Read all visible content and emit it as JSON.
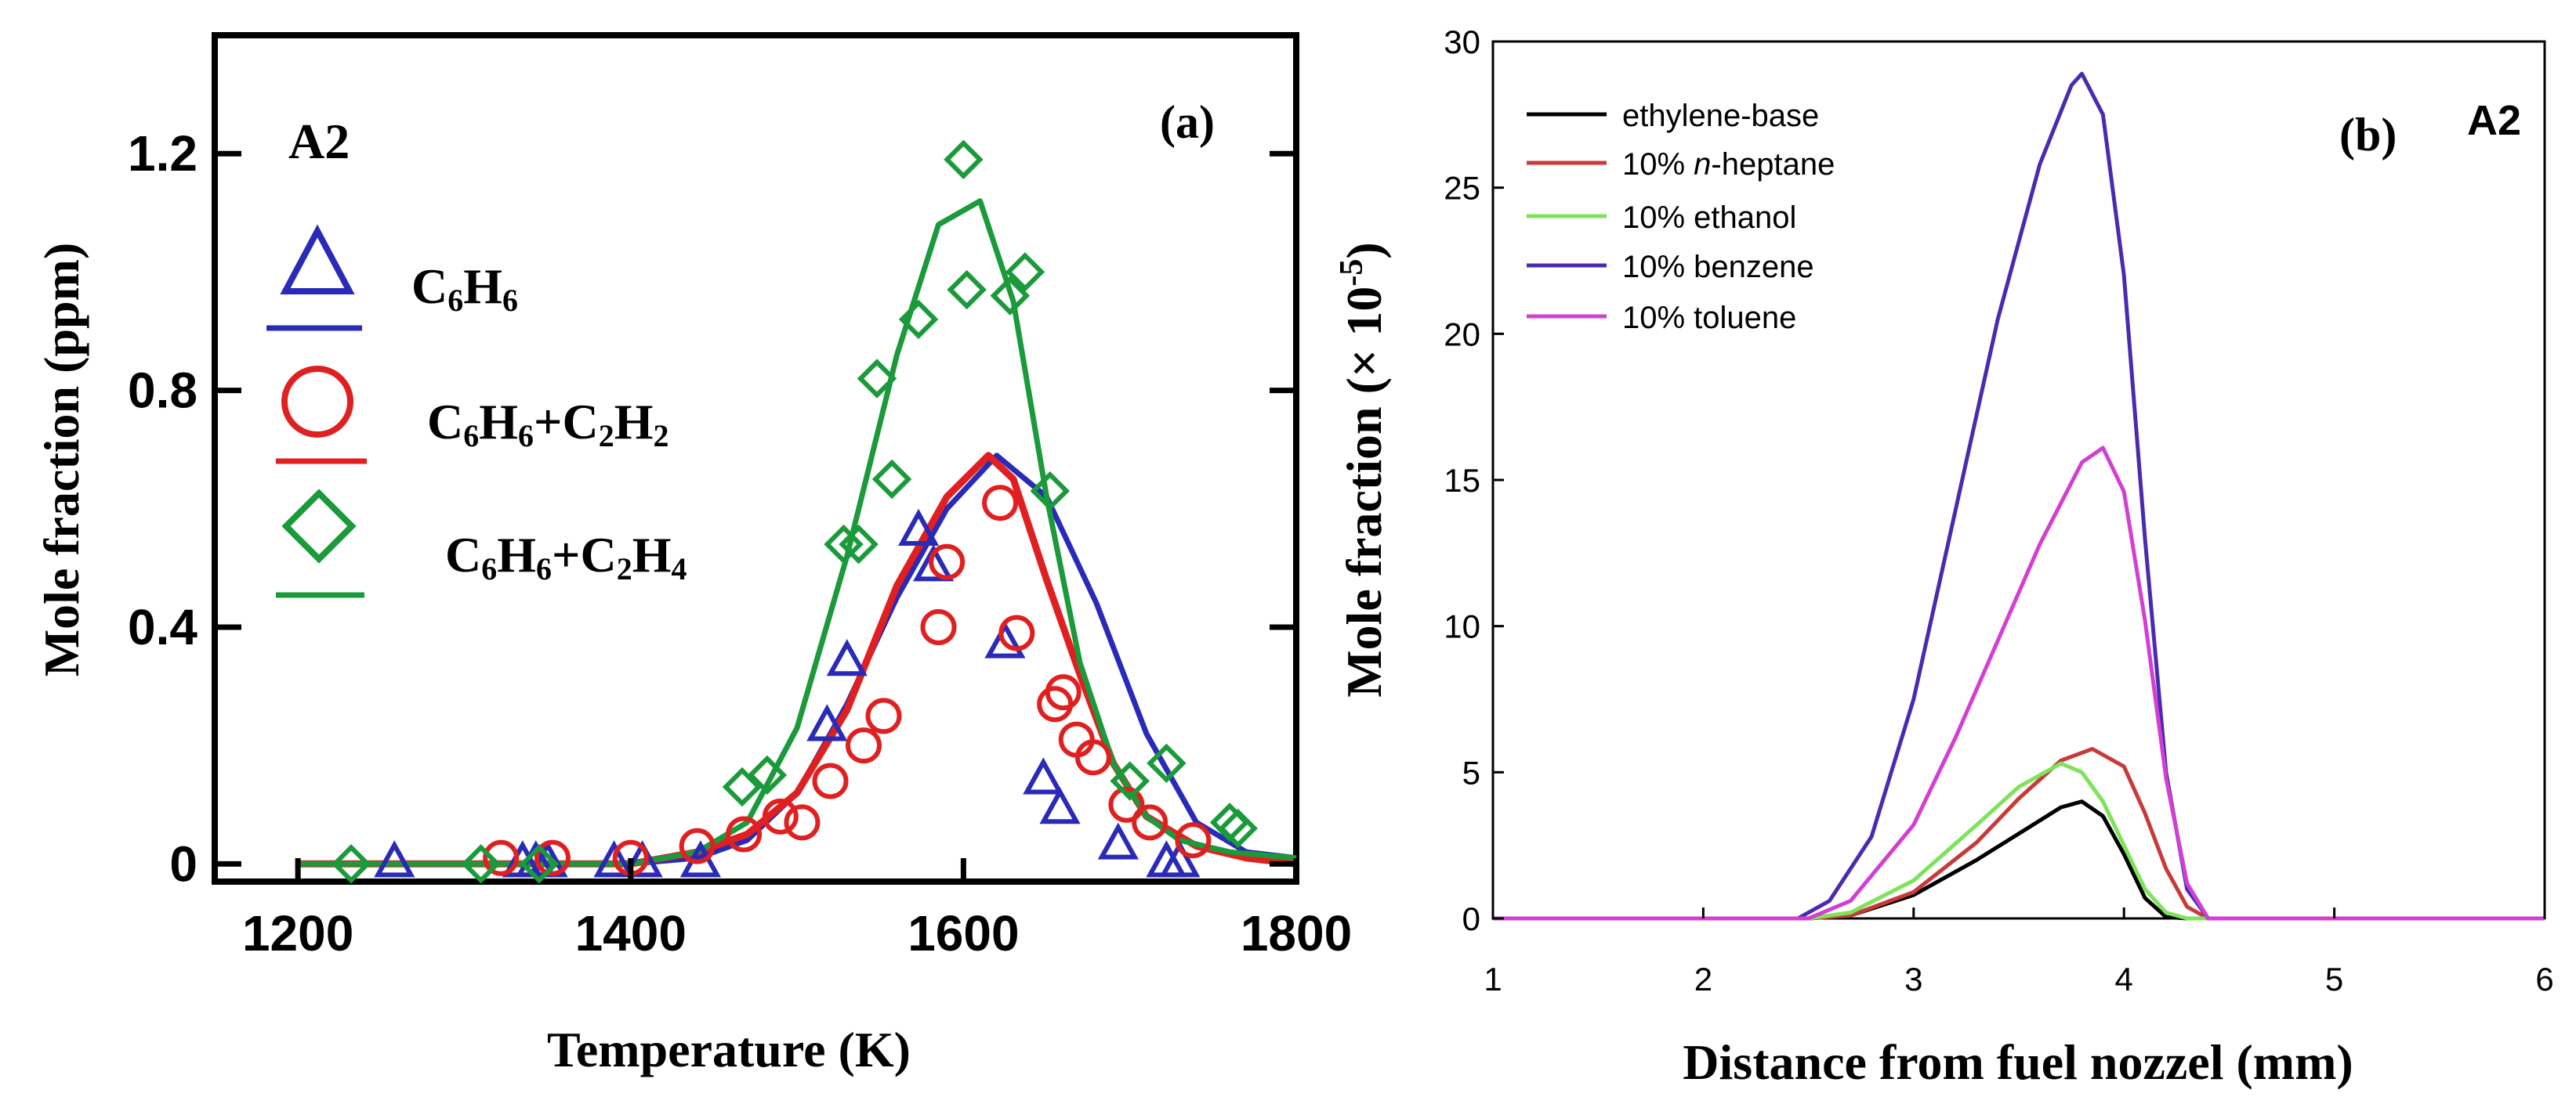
{
  "chart_data": [
    {
      "panel_label": "(a)",
      "type": "scatter",
      "tag": "A2",
      "xlabel": "Temperature (K)",
      "ylabel": "Mole fraction (ppm)",
      "xlim": [
        1150,
        1800
      ],
      "ylim": [
        -0.03,
        1.4
      ],
      "xticks": [
        1200,
        1400,
        1600,
        1800
      ],
      "xtick_labels": [
        "1200",
        "1400",
        "1600",
        "1800"
      ],
      "yticks": [
        0,
        0.4,
        0.8,
        1.2
      ],
      "ytick_labels": [
        "0",
        "0.4",
        "0.8",
        "1.2"
      ],
      "grid": false,
      "legend_position": "top-left",
      "series": [
        {
          "name": "C6H6",
          "legend": {
            "base": "C",
            "sub1": "6",
            "mid1": "H",
            "sub2": "6",
            "plus": "",
            "mid2": "",
            "sub3": "",
            "mid3": "",
            "sub4": ""
          },
          "marker": "triangle",
          "color": "#2a2ab8",
          "points": [
            [
              1258,
              0
            ],
            [
              1335,
              0
            ],
            [
              1343,
              0
            ],
            [
              1350,
              0
            ],
            [
              1390,
              0
            ],
            [
              1407,
              0
            ],
            [
              1442,
              0
            ],
            [
              1518,
              0.23
            ],
            [
              1530,
              0.34
            ],
            [
              1573,
              0.56
            ],
            [
              1582,
              0.5
            ],
            [
              1625,
              0.37
            ],
            [
              1648,
              0.14
            ],
            [
              1658,
              0.09
            ],
            [
              1693,
              0.03
            ],
            [
              1722,
              0
            ],
            [
              1730,
              0
            ]
          ],
          "curve": [
            [
              1200,
              0
            ],
            [
              1300,
              0
            ],
            [
              1400,
              0
            ],
            [
              1440,
              0.01
            ],
            [
              1470,
              0.04
            ],
            [
              1500,
              0.12
            ],
            [
              1530,
              0.27
            ],
            [
              1560,
              0.45
            ],
            [
              1590,
              0.6
            ],
            [
              1620,
              0.69
            ],
            [
              1650,
              0.62
            ],
            [
              1680,
              0.44
            ],
            [
              1710,
              0.22
            ],
            [
              1740,
              0.07
            ],
            [
              1770,
              0.02
            ],
            [
              1800,
              0.01
            ]
          ]
        },
        {
          "name": "C6H6+C2H2",
          "legend": {
            "base": "C",
            "sub1": "6",
            "mid1": "H",
            "sub2": "6",
            "plus": "+",
            "mid2": "C",
            "sub3": "2",
            "mid3": "H",
            "sub4": "2"
          },
          "marker": "circle",
          "color": "#e02020",
          "points": [
            [
              1322,
              0.01
            ],
            [
              1353,
              0.01
            ],
            [
              1400,
              0.01
            ],
            [
              1440,
              0.03
            ],
            [
              1468,
              0.05
            ],
            [
              1490,
              0.08
            ],
            [
              1503,
              0.07
            ],
            [
              1520,
              0.14
            ],
            [
              1540,
              0.2
            ],
            [
              1552,
              0.25
            ],
            [
              1585,
              0.4
            ],
            [
              1590,
              0.51
            ],
            [
              1622,
              0.61
            ],
            [
              1632,
              0.39
            ],
            [
              1655,
              0.27
            ],
            [
              1660,
              0.29
            ],
            [
              1668,
              0.21
            ],
            [
              1678,
              0.18
            ],
            [
              1698,
              0.1
            ],
            [
              1712,
              0.07
            ],
            [
              1738,
              0.04
            ]
          ],
          "curve": [
            [
              1200,
              0
            ],
            [
              1300,
              0
            ],
            [
              1400,
              0
            ],
            [
              1440,
              0.02
            ],
            [
              1470,
              0.05
            ],
            [
              1500,
              0.12
            ],
            [
              1530,
              0.26
            ],
            [
              1560,
              0.47
            ],
            [
              1590,
              0.62
            ],
            [
              1615,
              0.69
            ],
            [
              1630,
              0.65
            ],
            [
              1650,
              0.48
            ],
            [
              1670,
              0.32
            ],
            [
              1690,
              0.17
            ],
            [
              1710,
              0.08
            ],
            [
              1740,
              0.03
            ],
            [
              1770,
              0.01
            ],
            [
              1800,
              0
            ]
          ],
          "curve_width": 9
        },
        {
          "name": "C6H6+C2H4",
          "legend": {
            "base": "C",
            "sub1": "6",
            "mid1": "H",
            "sub2": "6",
            "plus": "+",
            "mid2": "C",
            "sub3": "2",
            "mid3": "H",
            "sub4": "4"
          },
          "marker": "diamond",
          "color": "#1a9a3a",
          "points": [
            [
              1232,
              0
            ],
            [
              1310,
              0
            ],
            [
              1345,
              0
            ],
            [
              1467,
              0.13
            ],
            [
              1482,
              0.15
            ],
            [
              1528,
              0.54
            ],
            [
              1537,
              0.54
            ],
            [
              1548,
              0.82
            ],
            [
              1557,
              0.65
            ],
            [
              1573,
              0.92
            ],
            [
              1600,
              1.19
            ],
            [
              1602,
              0.97
            ],
            [
              1628,
              0.96
            ],
            [
              1637,
              1.0
            ],
            [
              1652,
              0.63
            ],
            [
              1700,
              0.14
            ],
            [
              1722,
              0.17
            ],
            [
              1760,
              0.07
            ],
            [
              1765,
              0.06
            ]
          ],
          "curve": [
            [
              1200,
              0
            ],
            [
              1300,
              0
            ],
            [
              1400,
              0
            ],
            [
              1440,
              0.02
            ],
            [
              1470,
              0.07
            ],
            [
              1500,
              0.23
            ],
            [
              1530,
              0.52
            ],
            [
              1560,
              0.86
            ],
            [
              1585,
              1.08
            ],
            [
              1610,
              1.12
            ],
            [
              1630,
              0.95
            ],
            [
              1650,
              0.62
            ],
            [
              1670,
              0.34
            ],
            [
              1690,
              0.17
            ],
            [
              1710,
              0.08
            ],
            [
              1730,
              0.04
            ],
            [
              1760,
              0.02
            ],
            [
              1800,
              0.01
            ]
          ]
        }
      ]
    },
    {
      "panel_label": "(b)",
      "type": "line",
      "tag": "A2",
      "xlabel": "Distance from fuel nozzel (mm)",
      "ylabel_main": "Mole fraction (× 10",
      "ylabel_exp": "-5",
      "ylabel_close": ")",
      "xlim": [
        1,
        6
      ],
      "ylim": [
        0,
        30
      ],
      "xticks": [
        1,
        2,
        3,
        4,
        5,
        6
      ],
      "xtick_labels": [
        "1",
        "2",
        "3",
        "4",
        "5",
        "6"
      ],
      "yticks": [
        0,
        5,
        10,
        15,
        20,
        25,
        30
      ],
      "ytick_labels": [
        "0",
        "5",
        "10",
        "15",
        "20",
        "25",
        "30"
      ],
      "grid": false,
      "legend_position": "top-left",
      "series": [
        {
          "name": "ethylene-base",
          "legend": {
            "pre": "ethylene-base",
            "ital": "",
            "post": ""
          },
          "color": "#000000",
          "values": [
            [
              1,
              0
            ],
            [
              2.5,
              0
            ],
            [
              2.7,
              0.1
            ],
            [
              3.0,
              0.8
            ],
            [
              3.3,
              2.0
            ],
            [
              3.5,
              2.9
            ],
            [
              3.7,
              3.8
            ],
            [
              3.8,
              4.0
            ],
            [
              3.9,
              3.5
            ],
            [
              4.0,
              2.2
            ],
            [
              4.1,
              0.7
            ],
            [
              4.2,
              0.05
            ],
            [
              4.3,
              0
            ],
            [
              6,
              0
            ]
          ]
        },
        {
          "name": "10% n-heptane",
          "legend": {
            "pre": "10% ",
            "ital": "n",
            "post": "-heptane"
          },
          "color": "#c83a3a",
          "values": [
            [
              1,
              0
            ],
            [
              2.5,
              0
            ],
            [
              2.7,
              0.1
            ],
            [
              3.0,
              0.9
            ],
            [
              3.3,
              2.6
            ],
            [
              3.5,
              4.1
            ],
            [
              3.7,
              5.4
            ],
            [
              3.85,
              5.8
            ],
            [
              4.0,
              5.2
            ],
            [
              4.1,
              3.6
            ],
            [
              4.2,
              1.7
            ],
            [
              4.3,
              0.4
            ],
            [
              4.4,
              0
            ],
            [
              6,
              0
            ]
          ]
        },
        {
          "name": "10% ethanol",
          "legend": {
            "pre": "10% ethanol",
            "ital": "",
            "post": ""
          },
          "color": "#7de35a",
          "values": [
            [
              1,
              0
            ],
            [
              2.5,
              0
            ],
            [
              2.7,
              0.2
            ],
            [
              3.0,
              1.3
            ],
            [
              3.3,
              3.2
            ],
            [
              3.5,
              4.5
            ],
            [
              3.7,
              5.3
            ],
            [
              3.8,
              5.0
            ],
            [
              3.9,
              4.0
            ],
            [
              4.0,
              2.5
            ],
            [
              4.1,
              1.0
            ],
            [
              4.2,
              0.2
            ],
            [
              4.3,
              0
            ],
            [
              6,
              0
            ]
          ]
        },
        {
          "name": "10% benzene",
          "legend": {
            "pre": "10% benzene",
            "ital": "",
            "post": ""
          },
          "color": "#4a2bb0",
          "values": [
            [
              1,
              0
            ],
            [
              2.45,
              0
            ],
            [
              2.6,
              0.6
            ],
            [
              2.8,
              2.8
            ],
            [
              3.0,
              7.5
            ],
            [
              3.2,
              14.0
            ],
            [
              3.4,
              20.5
            ],
            [
              3.6,
              25.8
            ],
            [
              3.75,
              28.5
            ],
            [
              3.8,
              28.9
            ],
            [
              3.9,
              27.5
            ],
            [
              4.0,
              22.0
            ],
            [
              4.1,
              13.0
            ],
            [
              4.2,
              5.0
            ],
            [
              4.3,
              1.0
            ],
            [
              4.4,
              0
            ],
            [
              6,
              0
            ]
          ]
        },
        {
          "name": "10% toluene",
          "legend": {
            "pre": "10% toluene",
            "ital": "",
            "post": ""
          },
          "color": "#d23fd2",
          "values": [
            [
              1,
              0
            ],
            [
              2.5,
              0
            ],
            [
              2.7,
              0.6
            ],
            [
              3.0,
              3.2
            ],
            [
              3.2,
              6.2
            ],
            [
              3.4,
              9.5
            ],
            [
              3.6,
              12.8
            ],
            [
              3.8,
              15.6
            ],
            [
              3.9,
              16.1
            ],
            [
              4.0,
              14.6
            ],
            [
              4.1,
              10.2
            ],
            [
              4.2,
              4.8
            ],
            [
              4.3,
              1.2
            ],
            [
              4.4,
              0
            ],
            [
              6,
              0
            ]
          ]
        }
      ]
    }
  ]
}
